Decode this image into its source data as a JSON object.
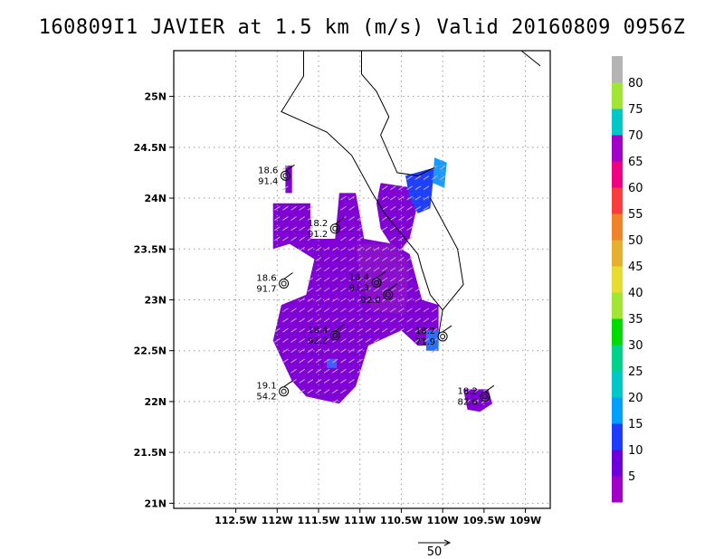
{
  "title": "160809I1 JAVIER at 1.5 km (m/s) Valid 20160809 0956Z",
  "chart_data": {
    "type": "heatmap",
    "title": "160809I1 JAVIER at 1.5 km (m/s) Valid 20160809 0956Z",
    "xlim": [
      -113.25,
      -108.7
    ],
    "ylim": [
      20.95,
      25.45
    ],
    "grid": true,
    "x_ticks": [
      {
        "v": -112.5,
        "label": "112.5W"
      },
      {
        "v": -112,
        "label": "112W"
      },
      {
        "v": -111.5,
        "label": "111.5W"
      },
      {
        "v": -111,
        "label": "111W"
      },
      {
        "v": -110.5,
        "label": "110.5W"
      },
      {
        "v": -110,
        "label": "110W"
      },
      {
        "v": -109.5,
        "label": "109.5W"
      },
      {
        "v": -109,
        "label": "109W"
      }
    ],
    "y_ticks": [
      {
        "v": 21,
        "label": "21N"
      },
      {
        "v": 21.5,
        "label": "21.5N"
      },
      {
        "v": 22,
        "label": "22N"
      },
      {
        "v": 22.5,
        "label": "22.5N"
      },
      {
        "v": 23,
        "label": "23N"
      },
      {
        "v": 23.5,
        "label": "23.5N"
      },
      {
        "v": 24,
        "label": "24N"
      },
      {
        "v": 24.5,
        "label": "24.5N"
      },
      {
        "v": 25,
        "label": "25N"
      }
    ],
    "colorbar": {
      "labels": [
        "5",
        "10",
        "15",
        "20",
        "25",
        "30",
        "35",
        "40",
        "45",
        "50",
        "55",
        "60",
        "65",
        "70",
        "75",
        "80"
      ],
      "colors": [
        "#a000c8",
        "#6e00dc",
        "#1e3cff",
        "#00a0ff",
        "#00c8c8",
        "#00d28c",
        "#00dc00",
        "#a0e632",
        "#e6dc32",
        "#e6af2d",
        "#f08228",
        "#fa3c3c",
        "#f00082",
        "#a000c8",
        "#00c8c8",
        "#a0e632",
        "#b4b4b4"
      ]
    },
    "wind_regions": [
      {
        "poly": [
          [
            -112.05,
            23.95
          ],
          [
            -111.6,
            23.95
          ],
          [
            -111.6,
            23.6
          ],
          [
            -111.3,
            23.6
          ],
          [
            -111.25,
            24.05
          ],
          [
            -111.05,
            24.05
          ],
          [
            -110.95,
            23.6
          ],
          [
            -110.6,
            23.55
          ],
          [
            -110.4,
            23.45
          ],
          [
            -110.25,
            23.0
          ],
          [
            -110.05,
            22.95
          ],
          [
            -110.05,
            22.55
          ],
          [
            -110.3,
            22.55
          ],
          [
            -110.5,
            22.7
          ],
          [
            -110.9,
            22.55
          ],
          [
            -111.05,
            22.15
          ],
          [
            -111.25,
            21.98
          ],
          [
            -111.65,
            22.05
          ],
          [
            -111.82,
            22.2
          ],
          [
            -112.05,
            22.6
          ],
          [
            -111.95,
            22.95
          ],
          [
            -111.65,
            23.05
          ],
          [
            -111.55,
            23.4
          ],
          [
            -111.85,
            23.55
          ],
          [
            -112.05,
            23.5
          ]
        ],
        "value": 5,
        "color": "#8000d6"
      },
      {
        "poly": [
          [
            -110.75,
            24.15
          ],
          [
            -110.35,
            24.1
          ],
          [
            -110.3,
            23.95
          ],
          [
            -110.4,
            23.6
          ],
          [
            -110.55,
            23.45
          ],
          [
            -110.75,
            23.7
          ],
          [
            -110.8,
            23.95
          ]
        ],
        "value": 5,
        "color": "#8000d6"
      },
      {
        "poly": [
          [
            -111.05,
            23.55
          ],
          [
            -110.6,
            23.55
          ],
          [
            -110.4,
            23.35
          ],
          [
            -110.45,
            22.85
          ],
          [
            -110.85,
            22.9
          ],
          [
            -111.0,
            23.2
          ]
        ],
        "value": 5,
        "color": "#8a10cc"
      },
      {
        "poly": [
          [
            -111.9,
            24.32
          ],
          [
            -111.82,
            24.32
          ],
          [
            -111.82,
            24.05
          ],
          [
            -111.9,
            24.05
          ]
        ],
        "value": 5,
        "color": "#8000d6"
      },
      {
        "poly": [
          [
            -109.75,
            22.12
          ],
          [
            -109.45,
            22.12
          ],
          [
            -109.4,
            21.98
          ],
          [
            -109.55,
            21.9
          ],
          [
            -109.7,
            21.92
          ]
        ],
        "value": 5,
        "color": "#8000d6"
      },
      {
        "poly": [
          [
            -110.45,
            24.22
          ],
          [
            -110.1,
            24.3
          ],
          [
            -110.15,
            23.9
          ],
          [
            -110.3,
            23.85
          ],
          [
            -110.4,
            24.0
          ]
        ],
        "value": 10,
        "color": "#2040ff"
      },
      {
        "poly": [
          [
            -110.1,
            24.4
          ],
          [
            -109.95,
            24.35
          ],
          [
            -109.98,
            24.1
          ],
          [
            -110.12,
            24.15
          ]
        ],
        "value": 15,
        "color": "#1a9aff"
      },
      {
        "poly": [
          [
            -110.2,
            22.7
          ],
          [
            -110.05,
            22.7
          ],
          [
            -110.05,
            22.5
          ],
          [
            -110.2,
            22.5
          ]
        ],
        "value": 15,
        "color": "#2a70ff"
      },
      {
        "poly": [
          [
            -111.4,
            22.42
          ],
          [
            -111.28,
            22.42
          ],
          [
            -111.28,
            22.33
          ],
          [
            -111.4,
            22.33
          ]
        ],
        "value": 10,
        "color": "#3f60ff"
      }
    ],
    "coast": [
      [
        [
          -111.68,
          25.45
        ],
        [
          -111.68,
          25.2
        ],
        [
          -111.95,
          24.85
        ],
        [
          -111.4,
          24.65
        ],
        [
          -111.1,
          24.42
        ],
        [
          -110.85,
          24.05
        ],
        [
          -110.7,
          23.85
        ],
        [
          -110.5,
          23.65
        ],
        [
          -110.3,
          23.45
        ],
        [
          -110.25,
          23.3
        ],
        [
          -110.15,
          23.05
        ],
        [
          -110.0,
          22.9
        ],
        [
          -110.05,
          22.65
        ]
      ],
      [
        [
          -110.98,
          25.45
        ],
        [
          -110.98,
          25.22
        ],
        [
          -110.8,
          25.05
        ],
        [
          -110.65,
          24.8
        ],
        [
          -110.75,
          24.62
        ],
        [
          -110.55,
          24.25
        ],
        [
          -110.3,
          24.22
        ],
        [
          -110.1,
          24.3
        ]
      ],
      [
        [
          -109.05,
          25.45
        ],
        [
          -108.82,
          25.3
        ]
      ],
      [
        [
          -110.15,
          24.0
        ],
        [
          -109.82,
          23.5
        ],
        [
          -109.75,
          23.15
        ],
        [
          -110.0,
          22.9
        ]
      ]
    ],
    "stations": [
      {
        "lon": -111.9,
        "lat": 24.22,
        "speed": "18.6",
        "pressure": "91.4"
      },
      {
        "lon": -111.3,
        "lat": 23.7,
        "speed": "18.2",
        "pressure": "91.2"
      },
      {
        "lon": -111.92,
        "lat": 23.16,
        "speed": "18.6",
        "pressure": "91.7"
      },
      {
        "lon": -110.8,
        "lat": 23.17,
        "speed": "18.4",
        "pressure": "91.3"
      },
      {
        "lon": -110.66,
        "lat": 23.05,
        "speed": "",
        "pressure": "92.0"
      },
      {
        "lon": -111.3,
        "lat": 22.65,
        "speed": "18.4",
        "pressure": "92.2"
      },
      {
        "lon": -110.0,
        "lat": 22.64,
        "speed": "18.2",
        "pressure": "71.9"
      },
      {
        "lon": -111.92,
        "lat": 22.1,
        "speed": "19.1",
        "pressure": "54.2"
      },
      {
        "lon": -109.49,
        "lat": 22.05,
        "speed": "18.2",
        "pressure": "82.6"
      }
    ],
    "reference_vector": {
      "label": "50"
    }
  }
}
